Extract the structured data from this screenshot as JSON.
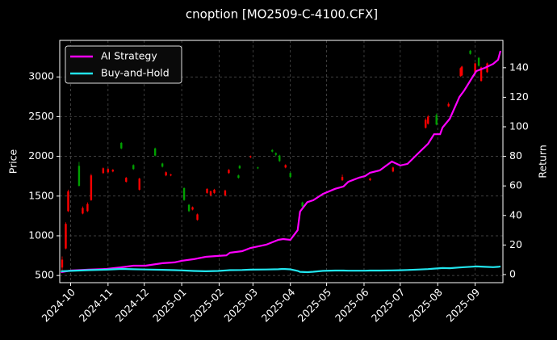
{
  "chart_data": {
    "type": "candlestick",
    "title": "cnoption [MO2509-C-4100.CFX]",
    "ylabel": "Price",
    "y2label": "Return",
    "xlim": [
      "2024-09-22",
      "2025-09-24"
    ],
    "xticks": [
      "2024-10",
      "2024-11",
      "2024-12",
      "2025-01",
      "2025-02",
      "2025-03",
      "2025-04",
      "2025-05",
      "2025-06",
      "2025-07",
      "2025-08",
      "2025-09"
    ],
    "ylim": [
      410,
      3460
    ],
    "yticks": [
      500,
      1000,
      1500,
      2000,
      2500,
      3000
    ],
    "y2lim": [
      -5.5,
      158.5
    ],
    "y2ticks": [
      0,
      20,
      40,
      60,
      80,
      100,
      120,
      140
    ],
    "grid": true,
    "legend": "upper left",
    "up_color": "#00a000",
    "down_color": "#ff0000",
    "x": [
      "2024-09-24",
      "2024-09-27",
      "2024-09-29",
      "2024-10-08",
      "2024-10-11",
      "2024-10-15",
      "2024-10-18",
      "2024-10-28",
      "2024-11-01",
      "2024-11-05",
      "2024-11-12",
      "2024-11-16",
      "2024-11-22",
      "2024-11-27",
      "2024-12-10",
      "2024-12-16",
      "2024-12-19",
      "2024-12-23",
      "2025-01-03",
      "2025-01-07",
      "2025-01-10",
      "2025-01-14",
      "2025-01-22",
      "2025-01-25",
      "2025-01-28",
      "2025-02-06",
      "2025-02-09",
      "2025-02-17",
      "2025-02-18",
      "2025-02-27",
      "2025-03-05",
      "2025-03-17",
      "2025-03-20",
      "2025-03-23",
      "2025-03-28",
      "2025-04-01",
      "2025-04-11",
      "2025-05-14",
      "2025-06-06",
      "2025-06-25",
      "2025-07-22",
      "2025-07-24",
      "2025-07-31",
      "2025-08-10",
      "2025-08-20",
      "2025-08-21",
      "2025-08-28",
      "2025-09-01",
      "2025-09-04",
      "2025-09-06",
      "2025-09-11"
    ],
    "open": [
      700,
      1150,
      1560,
      1630,
      1350,
      1400,
      1760,
      1850,
      1840,
      1830,
      2100,
      1730,
      1840,
      1720,
      2010,
      1870,
      1800,
      1770,
      1450,
      1310,
      1360,
      1270,
      1590,
      1560,
      1580,
      1570,
      1830,
      1730,
      1850,
      2000,
      1850,
      2060,
      2020,
      1940,
      1890,
      1740,
      1370,
      1740,
      1720,
      1860,
      2460,
      2500,
      2400,
      2660,
      3110,
      3130,
      3290,
      3170,
      3140,
      3120,
      3170
    ],
    "high": [
      740,
      1170,
      1580,
      1930,
      1370,
      1420,
      1780,
      1860,
      1850,
      1840,
      2180,
      1740,
      1900,
      1730,
      2110,
      1920,
      1810,
      1780,
      1610,
      1400,
      1370,
      1280,
      1600,
      1570,
      1590,
      1580,
      1840,
      1770,
      1890,
      2010,
      1870,
      2090,
      2050,
      2020,
      1900,
      1800,
      1430,
      1770,
      1730,
      1870,
      2480,
      2520,
      2540,
      2680,
      3120,
      3140,
      3340,
      3180,
      3250,
      3130,
      3180
    ],
    "low": [
      560,
      830,
      1300,
      1620,
      1270,
      1300,
      1440,
      1780,
      1790,
      1800,
      2090,
      1670,
      1830,
      1570,
      2000,
      1860,
      1750,
      1750,
      1440,
      1300,
      1320,
      1190,
      1530,
      1500,
      1530,
      1500,
      1780,
      1720,
      1840,
      1980,
      1840,
      2050,
      2000,
      1930,
      1850,
      1730,
      1360,
      1690,
      1690,
      1800,
      2350,
      2400,
      2390,
      2620,
      3000,
      3010,
      3280,
      3040,
      3130,
      2940,
      3050
    ],
    "close": [
      600,
      840,
      1310,
      1880,
      1280,
      1310,
      1450,
      1790,
      1800,
      1810,
      2170,
      1680,
      1890,
      1580,
      2100,
      1910,
      1760,
      1760,
      1600,
      1390,
      1330,
      1200,
      1540,
      1510,
      1540,
      1510,
      1790,
      1760,
      1880,
      1990,
      1860,
      2080,
      2040,
      2010,
      1860,
      1790,
      1420,
      1700,
      1700,
      1810,
      2360,
      2410,
      2520,
      2630,
      3010,
      3020,
      3330,
      3050,
      3240,
      2950,
      3060
    ],
    "series": [
      {
        "name": "AI Strategy",
        "color": "#ff00ff",
        "axis": "y2",
        "x": [
          "2024-09-23",
          "2024-10-01",
          "2024-10-16",
          "2024-10-31",
          "2024-11-12",
          "2024-11-22",
          "2024-12-02",
          "2024-12-16",
          "2024-12-26",
          "2025-01-01",
          "2025-01-11",
          "2025-01-21",
          "2025-01-31",
          "2025-02-07",
          "2025-02-10",
          "2025-02-20",
          "2025-02-27",
          "2025-03-12",
          "2025-03-22",
          "2025-03-26",
          "2025-04-01",
          "2025-04-07",
          "2025-04-09",
          "2025-04-15",
          "2025-04-20",
          "2025-04-28",
          "2025-05-08",
          "2025-05-15",
          "2025-05-19",
          "2025-05-28",
          "2025-06-02",
          "2025-06-06",
          "2025-06-14",
          "2025-06-24",
          "2025-07-01",
          "2025-07-07",
          "2025-07-17",
          "2025-07-24",
          "2025-07-29",
          "2025-08-03",
          "2025-08-05",
          "2025-08-11",
          "2025-08-19",
          "2025-08-23",
          "2025-08-30",
          "2025-09-02",
          "2025-09-09",
          "2025-09-16",
          "2025-09-20",
          "2025-09-22"
        ],
        "values": [
          1.6,
          2.7,
          3.3,
          3.8,
          4.9,
          6,
          6,
          7.7,
          8.2,
          9.3,
          10.4,
          12,
          12.6,
          13,
          14.8,
          15.8,
          18,
          20.2,
          23.5,
          24,
          23.5,
          30,
          42.6,
          49,
          50.3,
          54.6,
          58,
          59.6,
          62.8,
          65.6,
          66.7,
          68.9,
          70.5,
          76.5,
          73.8,
          74.9,
          83,
          88.5,
          95,
          95,
          99.5,
          105.5,
          120.2,
          124.6,
          133.9,
          137.7,
          139.9,
          142.6,
          145.4,
          151.4
        ]
      },
      {
        "name": "Buy-and-Hold",
        "color": "#22e5ee",
        "axis": "y2",
        "x": [
          "2024-09-23",
          "2024-10-01",
          "2024-10-16",
          "2024-10-31",
          "2024-11-12",
          "2024-11-22",
          "2024-12-02",
          "2024-12-16",
          "2024-12-26",
          "2025-01-01",
          "2025-01-11",
          "2025-01-21",
          "2025-01-31",
          "2025-02-07",
          "2025-02-10",
          "2025-02-20",
          "2025-02-27",
          "2025-03-12",
          "2025-03-22",
          "2025-03-26",
          "2025-04-01",
          "2025-04-07",
          "2025-04-09",
          "2025-04-15",
          "2025-04-20",
          "2025-04-28",
          "2025-05-08",
          "2025-05-15",
          "2025-05-19",
          "2025-05-28",
          "2025-06-02",
          "2025-06-06",
          "2025-06-14",
          "2025-06-24",
          "2025-07-01",
          "2025-07-07",
          "2025-07-17",
          "2025-07-24",
          "2025-07-29",
          "2025-08-03",
          "2025-08-05",
          "2025-08-11",
          "2025-08-19",
          "2025-08-23",
          "2025-08-30",
          "2025-09-02",
          "2025-09-09",
          "2025-09-16",
          "2025-09-20",
          "2025-09-22"
        ],
        "values": [
          2.2,
          2.5,
          3,
          3.3,
          3.8,
          3.6,
          3.4,
          3.2,
          3,
          2.8,
          2.4,
          2.2,
          2.4,
          2.8,
          3,
          3.1,
          3.3,
          3.4,
          3.6,
          3.8,
          3.5,
          2.5,
          1.8,
          1.6,
          1.9,
          2.5,
          2.7,
          2.7,
          2.6,
          2.6,
          2.6,
          2.7,
          2.7,
          2.8,
          2.9,
          3.1,
          3.4,
          3.7,
          4,
          4.3,
          4.4,
          4.3,
          4.8,
          5,
          5.3,
          5.5,
          5.2,
          5,
          5.2,
          5.5
        ]
      }
    ]
  }
}
